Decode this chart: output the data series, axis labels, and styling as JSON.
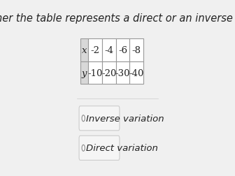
{
  "title": "Tell whether the table represents a direct or an inverse variation.",
  "title_fontsize": 10.5,
  "table_x_label": "x",
  "table_y_label": "y",
  "x_values": [
    "-2",
    "-4",
    "-6",
    "-8"
  ],
  "y_values": [
    "-10",
    "-20",
    "-30",
    "-40"
  ],
  "option1": "Inverse variation",
  "option2": "Direct variation",
  "bg_color": "#f0f0f0",
  "table_bg_header": "#d8d8d8",
  "table_bg_cell": "#ffffff",
  "table_border_color": "#999999",
  "text_color": "#222222",
  "option_bg": "#f5f5f5",
  "option_border": "#cccccc"
}
